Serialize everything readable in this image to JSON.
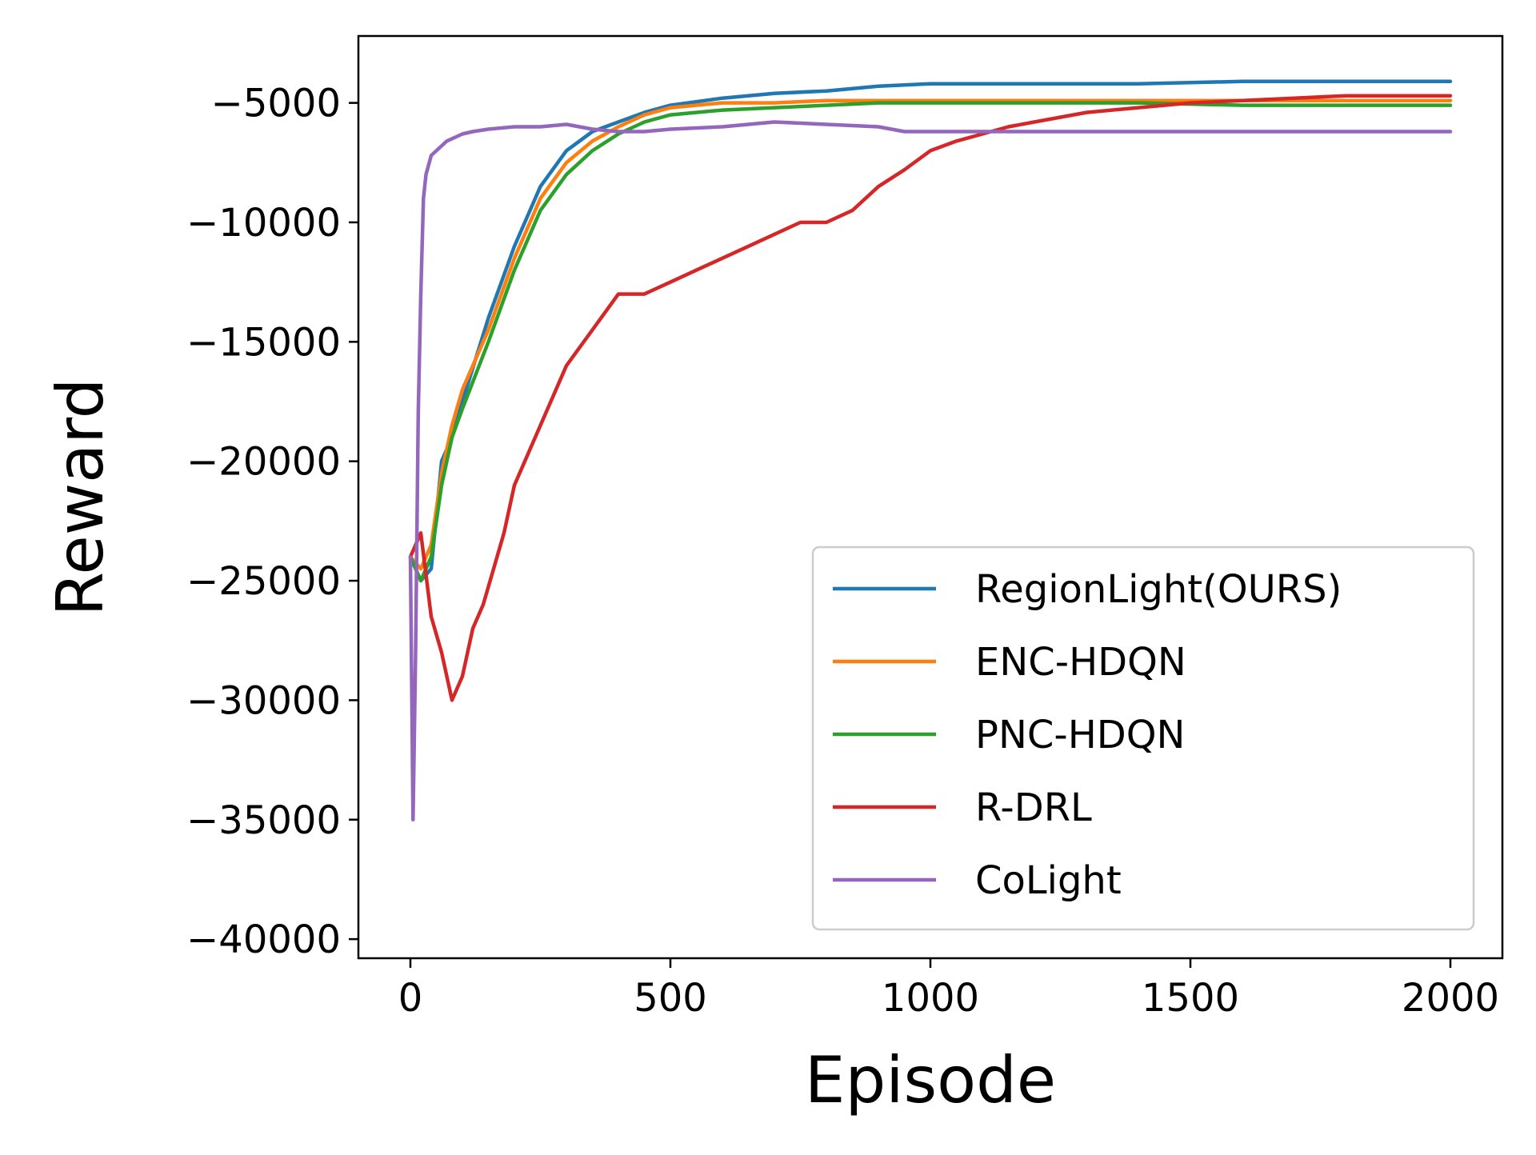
{
  "chart_data": {
    "type": "line",
    "xlabel": "Episode",
    "ylabel": "Reward",
    "xlim": [
      -100,
      2100
    ],
    "ylim": [
      -40800,
      -2200
    ],
    "xticks": [
      0,
      500,
      1000,
      1500,
      2000
    ],
    "yticks": [
      -40000,
      -35000,
      -30000,
      -25000,
      -20000,
      -15000,
      -10000,
      -5000
    ],
    "grid": false,
    "legend_position": "lower right",
    "series": [
      {
        "name": "RegionLight(OURS)",
        "color": "#1f77b4",
        "x": [
          0,
          20,
          40,
          60,
          80,
          100,
          150,
          200,
          250,
          300,
          350,
          400,
          450,
          500,
          600,
          700,
          800,
          900,
          1000,
          1200,
          1400,
          1600,
          1800,
          2000
        ],
        "y": [
          -24000,
          -25000,
          -24500,
          -20000,
          -19000,
          -17500,
          -14000,
          -11000,
          -8500,
          -7000,
          -6200,
          -5800,
          -5400,
          -5100,
          -4800,
          -4600,
          -4500,
          -4300,
          -4200,
          -4200,
          -4200,
          -4100,
          -4100,
          -4100
        ]
      },
      {
        "name": "ENC-HDQN",
        "color": "#ff7f0e",
        "x": [
          0,
          20,
          40,
          60,
          80,
          100,
          150,
          200,
          250,
          300,
          350,
          400,
          450,
          500,
          600,
          700,
          800,
          900,
          1000,
          1200,
          1400,
          1600,
          1800,
          2000
        ],
        "y": [
          -24000,
          -24500,
          -23500,
          -20500,
          -18500,
          -17000,
          -14500,
          -11500,
          -9000,
          -7500,
          -6600,
          -6000,
          -5500,
          -5200,
          -5000,
          -5000,
          -4900,
          -4900,
          -4900,
          -4900,
          -4900,
          -4900,
          -4900,
          -4900
        ]
      },
      {
        "name": "PNC-HDQN",
        "color": "#2ca02c",
        "x": [
          0,
          20,
          40,
          60,
          80,
          100,
          150,
          200,
          250,
          300,
          350,
          400,
          450,
          500,
          600,
          700,
          800,
          900,
          1000,
          1200,
          1400,
          1600,
          1800,
          2000
        ],
        "y": [
          -24000,
          -25000,
          -24000,
          -21000,
          -19000,
          -17800,
          -15000,
          -12000,
          -9500,
          -8000,
          -7000,
          -6300,
          -5800,
          -5500,
          -5300,
          -5200,
          -5100,
          -5000,
          -5000,
          -5000,
          -5000,
          -5100,
          -5100,
          -5100
        ]
      },
      {
        "name": "R-DRL",
        "color": "#d62728",
        "x": [
          0,
          20,
          40,
          60,
          80,
          100,
          120,
          140,
          160,
          180,
          200,
          250,
          300,
          350,
          400,
          450,
          500,
          550,
          600,
          650,
          700,
          750,
          800,
          850,
          900,
          950,
          1000,
          1050,
          1100,
          1150,
          1200,
          1300,
          1400,
          1500,
          1600,
          1700,
          1800,
          1900,
          2000
        ],
        "y": [
          -24000,
          -23000,
          -26500,
          -28000,
          -30000,
          -29000,
          -27000,
          -26000,
          -24500,
          -23000,
          -21000,
          -18500,
          -16000,
          -14500,
          -13000,
          -13000,
          -12500,
          -12000,
          -11500,
          -11000,
          -10500,
          -10000,
          -10000,
          -9500,
          -8500,
          -7800,
          -7000,
          -6600,
          -6300,
          -6000,
          -5800,
          -5400,
          -5200,
          -5000,
          -4900,
          -4800,
          -4700,
          -4700,
          -4700
        ]
      },
      {
        "name": "CoLight",
        "color": "#9467bd",
        "x": [
          0,
          5,
          10,
          15,
          20,
          25,
          30,
          40,
          50,
          60,
          70,
          80,
          90,
          100,
          120,
          150,
          200,
          250,
          300,
          350,
          400,
          450,
          500,
          600,
          700,
          800,
          900,
          950,
          1000,
          1200,
          1400,
          1600,
          1800,
          2000
        ],
        "y": [
          -24000,
          -35000,
          -28000,
          -18000,
          -13000,
          -9000,
          -8000,
          -7200,
          -7000,
          -6800,
          -6600,
          -6500,
          -6400,
          -6300,
          -6200,
          -6100,
          -6000,
          -6000,
          -5900,
          -6100,
          -6200,
          -6200,
          -6100,
          -6000,
          -5800,
          -5900,
          -6000,
          -6200,
          -6200,
          -6200,
          -6200,
          -6200,
          -6200,
          -6200
        ]
      }
    ]
  }
}
